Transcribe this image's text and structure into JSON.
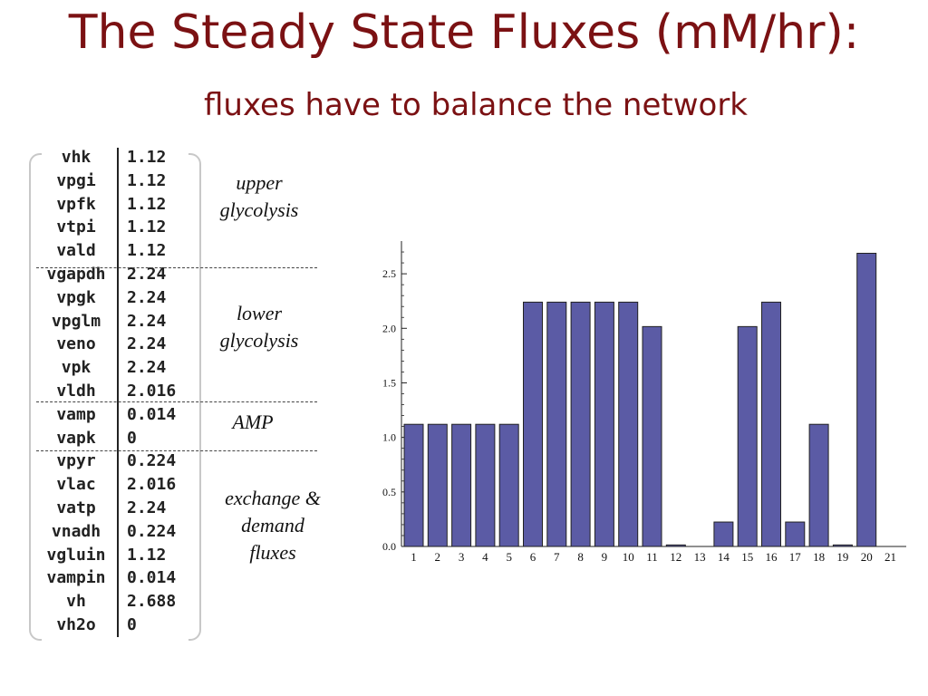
{
  "slide": {
    "title": "The Steady State Fluxes (mM/hr):",
    "subtitle": "fluxes have to balance the network"
  },
  "table": {
    "rows": [
      {
        "name": "vhk",
        "value": "1.12"
      },
      {
        "name": "vpgi",
        "value": "1.12"
      },
      {
        "name": "vpfk",
        "value": "1.12"
      },
      {
        "name": "vtpi",
        "value": "1.12"
      },
      {
        "name": "vald",
        "value": "1.12"
      },
      {
        "name": "vgapdh",
        "value": "2.24"
      },
      {
        "name": "vpgk",
        "value": "2.24"
      },
      {
        "name": "vpglm",
        "value": "2.24"
      },
      {
        "name": "veno",
        "value": "2.24"
      },
      {
        "name": "vpk",
        "value": "2.24"
      },
      {
        "name": "vldh",
        "value": "2.016"
      },
      {
        "name": "vamp",
        "value": "0.014"
      },
      {
        "name": "vapk",
        "value": "0"
      },
      {
        "name": "vpyr",
        "value": "0.224"
      },
      {
        "name": "vlac",
        "value": "2.016"
      },
      {
        "name": "vatp",
        "value": "2.24"
      },
      {
        "name": "vnadh",
        "value": "0.224"
      },
      {
        "name": "vgluin",
        "value": "1.12"
      },
      {
        "name": "vampin",
        "value": "0.014"
      },
      {
        "name": "vh",
        "value": "2.688"
      },
      {
        "name": "vh2o",
        "value": "0"
      }
    ]
  },
  "groups": {
    "upper_line1": "upper",
    "upper_line2": "glycolysis",
    "lower_line1": "lower",
    "lower_line2": "glycolysis",
    "amp": "AMP",
    "exchange_line1": "exchange &",
    "exchange_line2": "demand",
    "exchange_line3": "fluxes"
  },
  "chart_data": {
    "type": "bar",
    "categories": [
      "1",
      "2",
      "3",
      "4",
      "5",
      "6",
      "7",
      "8",
      "9",
      "10",
      "11",
      "12",
      "13",
      "14",
      "15",
      "16",
      "17",
      "18",
      "19",
      "20",
      "21"
    ],
    "values": [
      1.12,
      1.12,
      1.12,
      1.12,
      1.12,
      2.24,
      2.24,
      2.24,
      2.24,
      2.24,
      2.016,
      0.014,
      0,
      0.224,
      2.016,
      2.24,
      0.224,
      1.12,
      0.014,
      2.688,
      0
    ],
    "y_ticks": [
      "0.0",
      "0.5",
      "1.0",
      "1.5",
      "2.0",
      "2.5"
    ],
    "ylim": [
      0,
      2.8
    ],
    "bar_color": "#5b5ba5",
    "grid": false
  }
}
